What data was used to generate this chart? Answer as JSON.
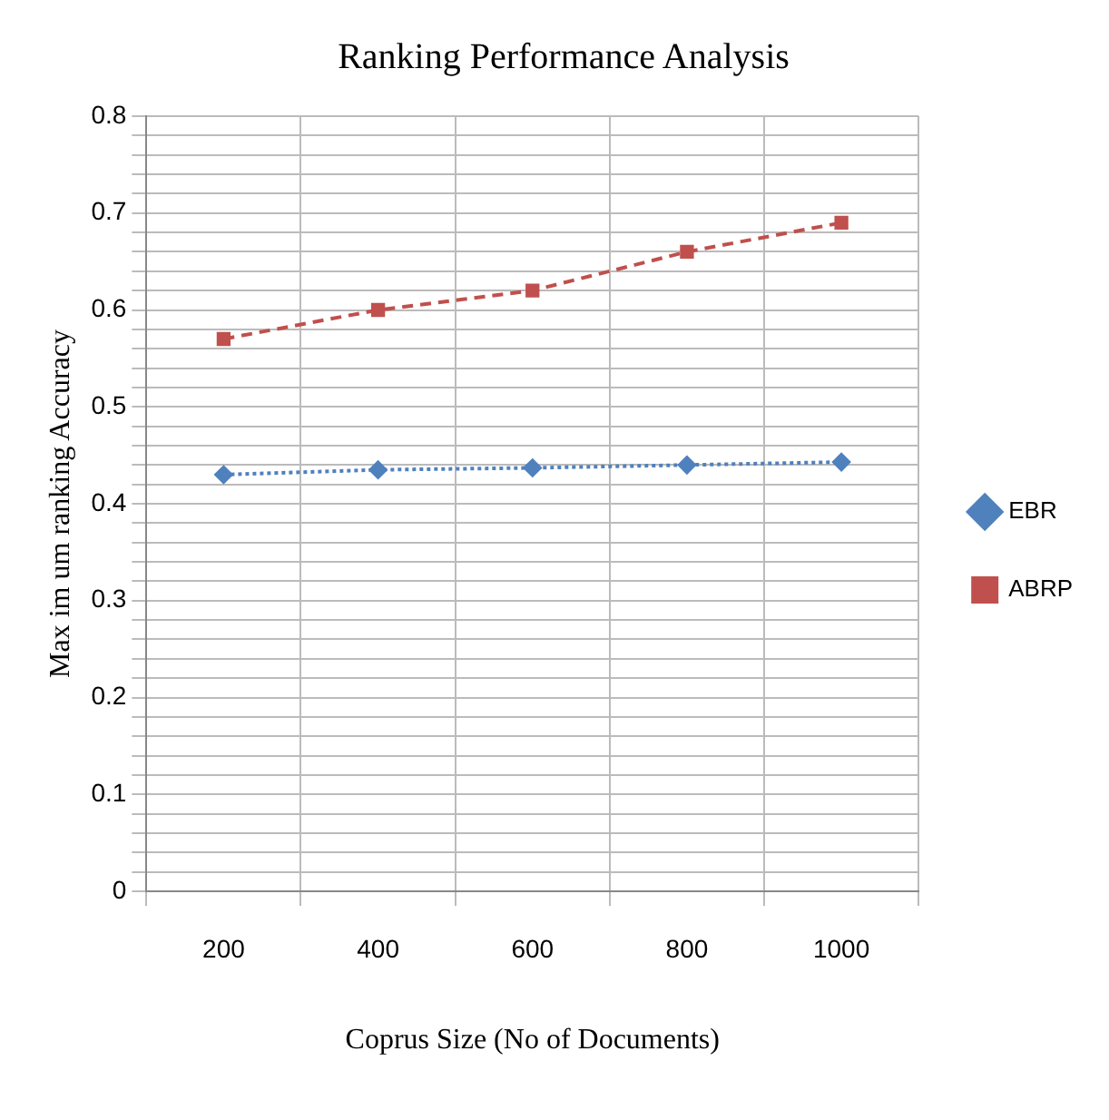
{
  "chart_data": {
    "type": "line",
    "title": "Ranking Performance Analysis",
    "xlabel": "Coprus Size (No of Documents)",
    "ylabel": "Max im um ranking Accuracy",
    "categories": [
      "200",
      "400",
      "600",
      "800",
      "1000"
    ],
    "series": [
      {
        "name": "EBR",
        "color": "#4f81bd",
        "values": [
          0.43,
          0.435,
          0.437,
          0.44,
          0.443
        ],
        "marker": "diamond",
        "line_style": "dotted"
      },
      {
        "name": "ABRP",
        "color": "#c0504d",
        "values": [
          0.57,
          0.6,
          0.62,
          0.66,
          0.69
        ],
        "marker": "square",
        "line_style": "dashed"
      }
    ],
    "ylim": [
      0,
      0.8
    ],
    "yticks": [
      0,
      {
        "value": 0.02,
        "label": null
      },
      {
        "value": 0.04,
        "label": null
      },
      {
        "value": 0.06,
        "label": null
      },
      {
        "value": 0.08,
        "label": null
      },
      0.1,
      {
        "value": 0.12,
        "label": null
      },
      {
        "value": 0.14,
        "label": null
      },
      {
        "value": 0.16,
        "label": null
      },
      {
        "value": 0.18,
        "label": null
      },
      0.2,
      {
        "value": 0.22,
        "label": null
      },
      {
        "value": 0.24,
        "label": null
      },
      {
        "value": 0.26,
        "label": null
      },
      {
        "value": 0.28,
        "label": null
      },
      0.3,
      {
        "value": 0.32,
        "label": null
      },
      {
        "value": 0.34,
        "label": null
      },
      {
        "value": 0.36,
        "label": null
      },
      {
        "value": 0.38,
        "label": null
      },
      0.4,
      {
        "value": 0.42,
        "label": null
      },
      {
        "value": 0.44,
        "label": null
      },
      {
        "value": 0.46,
        "label": null
      },
      {
        "value": 0.48,
        "label": null
      },
      0.5,
      {
        "value": 0.52,
        "label": null
      },
      {
        "value": 0.54,
        "label": null
      },
      {
        "value": 0.56,
        "label": null
      },
      {
        "value": 0.58,
        "label": null
      },
      0.6,
      {
        "value": 0.62,
        "label": null
      },
      {
        "value": 0.64,
        "label": null
      },
      {
        "value": 0.66,
        "label": null
      },
      {
        "value": 0.68,
        "label": null
      },
      0.7,
      {
        "value": 0.72,
        "label": null
      },
      {
        "value": 0.74,
        "label": null
      },
      {
        "value": 0.76,
        "label": null
      },
      {
        "value": 0.78,
        "label": null
      },
      0.8
    ],
    "grid": true,
    "legend": "right"
  }
}
